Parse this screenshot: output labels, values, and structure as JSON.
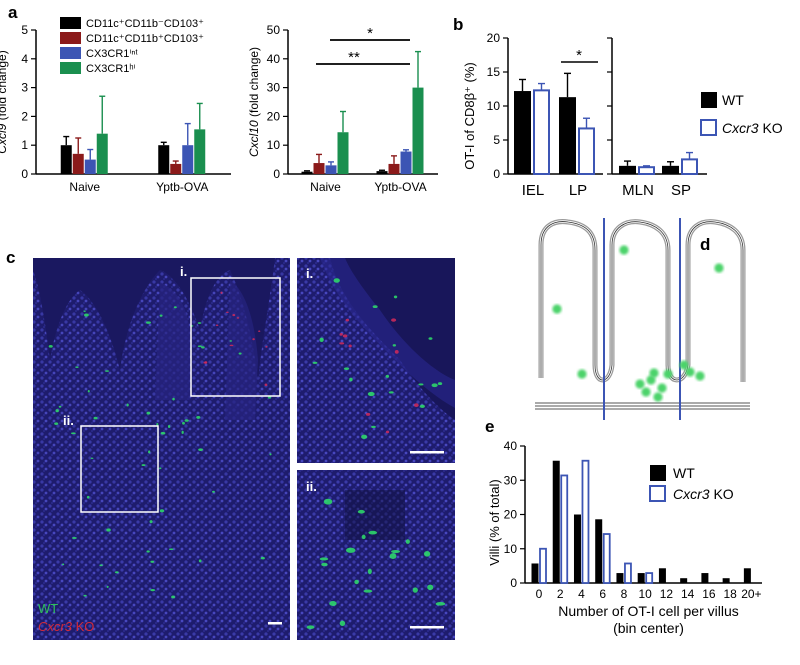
{
  "colors": {
    "black": "#000000",
    "red": "#8b1a1a",
    "blue": "#3c55b4",
    "green": "#1a8f4f",
    "kobar": "#3c55b4",
    "micro_bg": "#1b1a66",
    "micro_dot": "#2ee06a",
    "micro_red": "#d22a5a"
  },
  "panels": {
    "a": "a",
    "b": "b",
    "c": "c",
    "d": "d",
    "e": "e"
  },
  "chart_data": [
    {
      "type": "bar",
      "id": "a1",
      "categories": [
        "Naive",
        "Yptb-OVA"
      ],
      "ylabel": "Cxcl9 (fold change)",
      "ylabel_italic": "Cxcl9",
      "ylabel_rest": " (fold change)",
      "ylim": [
        0,
        5
      ],
      "yticks": [
        "0",
        "1",
        "2",
        "3",
        "4",
        "5"
      ],
      "series": [
        {
          "name": "CD11c⁺CD11b⁻CD103⁺",
          "values": [
            1.0,
            1.0
          ],
          "errors": [
            0.3,
            0.1
          ]
        },
        {
          "name": "CD11c⁺CD11b⁺CD103⁺",
          "values": [
            0.7,
            0.35
          ],
          "errors": [
            0.55,
            0.1
          ]
        },
        {
          "name": "CX3CR1ⁱⁿᵗ",
          "values": [
            0.5,
            1.0
          ],
          "errors": [
            0.35,
            0.75
          ]
        },
        {
          "name": "CX3CR1ʰⁱ",
          "values": [
            1.4,
            1.55
          ],
          "errors": [
            1.3,
            0.9
          ]
        }
      ]
    },
    {
      "type": "bar",
      "id": "a2",
      "categories": [
        "Naive",
        "Yptb-OVA"
      ],
      "ylabel_italic": "Cxcl10",
      "ylabel_rest": " (fold change)",
      "ylim": [
        0,
        50
      ],
      "yticks": [
        "0",
        "10",
        "20",
        "30",
        "40",
        "50"
      ],
      "series": [
        {
          "name": "CD11c⁺CD11b⁻CD103⁺",
          "values": [
            0.8,
            1.0
          ],
          "errors": [
            0.3,
            0.3
          ]
        },
        {
          "name": "CD11c⁺CD11b⁺CD103⁺",
          "values": [
            3.8,
            3.5
          ],
          "errors": [
            3.0,
            2.8
          ]
        },
        {
          "name": "CX3CR1ⁱⁿᵗ",
          "values": [
            3.0,
            7.8
          ],
          "errors": [
            1.2,
            0.6
          ]
        },
        {
          "name": "CX3CR1ʰⁱ",
          "values": [
            14.5,
            30.0
          ],
          "errors": [
            7.2,
            12.5
          ]
        }
      ],
      "annotations": [
        "*",
        "**"
      ]
    },
    {
      "type": "bar",
      "id": "b",
      "categories": [
        "IEL",
        "LP",
        "MLN",
        "SP"
      ],
      "ylabel": "OT-I of CD8β⁺ (%)",
      "ylim": [
        0,
        20
      ],
      "yticks": [
        "0",
        "5",
        "10",
        "15",
        "20"
      ],
      "series": [
        {
          "name": "WT",
          "values": [
            12.2,
            11.3,
            1.2,
            1.2
          ],
          "errors": [
            1.7,
            3.5,
            0.7,
            0.6
          ]
        },
        {
          "name": "Cxcr3 KO",
          "values": [
            12.3,
            6.7,
            1.0,
            2.15
          ],
          "errors": [
            1.0,
            1.5,
            0.2,
            1.0
          ]
        }
      ],
      "annotations": [
        "*"
      ]
    },
    {
      "type": "bar",
      "id": "e",
      "categories": [
        "0",
        "2",
        "4",
        "6",
        "8",
        "10",
        "12",
        "14",
        "16",
        "18",
        "20+"
      ],
      "xlabel": "Number of OT-I cell per villus",
      "xlabel2": "(bin center)",
      "ylabel": "Villi (% of total)",
      "ylim": [
        0,
        40
      ],
      "yticks": [
        "0",
        "10",
        "20",
        "30",
        "40"
      ],
      "series": [
        {
          "name": "WT",
          "values": [
            5.7,
            35.7,
            20.0,
            18.6,
            2.9,
            2.9,
            4.3,
            1.4,
            2.9,
            1.4,
            4.3
          ]
        },
        {
          "name": "Cxcr3 KO",
          "values": [
            10.0,
            31.4,
            35.7,
            14.3,
            5.7,
            2.9,
            0,
            0,
            0,
            0,
            0
          ]
        }
      ]
    }
  ],
  "micro": {
    "label_i": "i.",
    "label_ii": "ii.",
    "inset_i": "i.",
    "inset_ii": "ii.",
    "legend_wt": "WT",
    "legend_ko_italic": "Cxcr3",
    "legend_ko_rest": " KO"
  },
  "legend_b": {
    "wt": "WT",
    "ko_italic": "Cxcr3",
    "ko_rest": " KO"
  },
  "legend_e": {
    "wt": "WT",
    "ko_italic": "Cxcr3",
    "ko_rest": " KO"
  }
}
